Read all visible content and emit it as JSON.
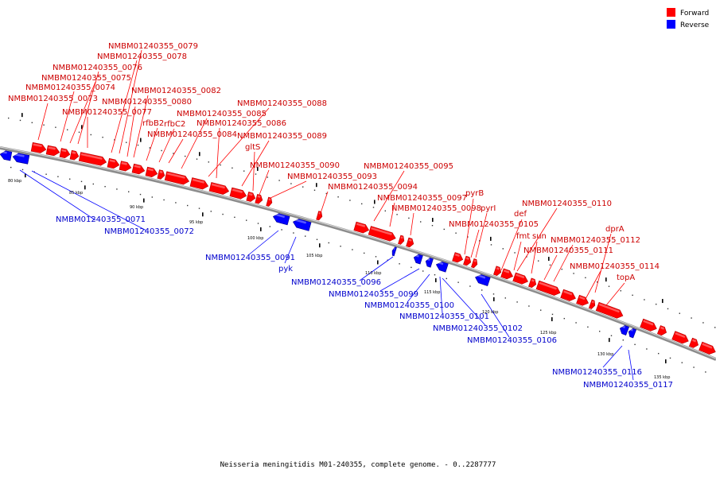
{
  "legend": {
    "forward_label": "Forward",
    "reverse_label": "Reverse",
    "forward_color": "#ff0000",
    "reverse_color": "#0000ff"
  },
  "caption": "Neisseria meningitidis M01-240355, complete genome. - 0..2287777",
  "axis": {
    "unit": "kbp",
    "tick_labels": [
      "80 kbp",
      "85 kbp",
      "90 kbp",
      "95 kbp",
      "100 kbp",
      "105 kbp",
      "110 kbp",
      "115 kbp",
      "120 kbp",
      "125 kbp",
      "130 kbp",
      "135 kbp"
    ]
  },
  "forward_labels": [
    "NMBM01240355_0079",
    "NMBM01240355_0078",
    "NMBM01240355_0076",
    "NMBM01240355_0075",
    "NMBM01240355_0074",
    "NMBM01240355_0082",
    "NMBM01240355_0073",
    "NMBM01240355_0080",
    "NMBM01240355_0088",
    "NMBM01240355_0077",
    "NMBM01240355_0085",
    "rfbB2",
    "rfbC2",
    "NMBM01240355_0086",
    "NMBM01240355_0084",
    "NMBM01240355_0089",
    "gltS",
    "NMBM01240355_0090",
    "NMBM01240355_0095",
    "NMBM01240355_0093",
    "NMBM01240355_0094",
    "NMBM01240355_0097",
    "pyrB",
    "NMBM01240355_0098",
    "pyrI",
    "NMBM01240355_0110",
    "def",
    "NMBM01240355_0105",
    "dprA",
    "fmt",
    "sun",
    "NMBM01240355_0112",
    "NMBM01240355_0111",
    "NMBM01240355_0114",
    "topA"
  ],
  "reverse_labels": [
    "NMBM01240355_0071",
    "NMBM01240355_0072",
    "NMBM01240355_0091",
    "pyk",
    "NMBM01240355_0096",
    "NMBM01240355_0099",
    "NMBM01240355_0100",
    "NMBM01240355_0101",
    "NMBM01240355_0102",
    "NMBM01240355_0106",
    "NMBM01240355_0116",
    "NMBM01240355_0117"
  ]
}
